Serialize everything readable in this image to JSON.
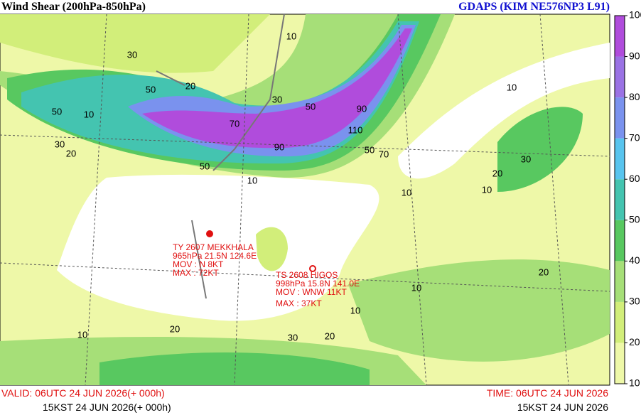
{
  "header": {
    "title": "Wind Shear (200hPa-850hPa)",
    "model": "GDAPS (KIM NE576NP3 L91)"
  },
  "colorbar": {
    "ticks": [
      10,
      20,
      30,
      40,
      50,
      60,
      70,
      80,
      90,
      100
    ],
    "colors": [
      "#eef8a8",
      "#d2ee7a",
      "#a6df78",
      "#58c860",
      "#44c4b0",
      "#58c4ee",
      "#7a92ee",
      "#9a72e4",
      "#b04cdc"
    ]
  },
  "contour_labels": [
    30,
    50,
    20,
    10,
    50,
    30,
    20,
    10,
    70,
    50,
    50,
    30,
    90,
    110,
    90,
    70,
    50,
    10,
    30,
    20,
    10,
    10,
    10,
    10,
    20,
    30,
    10,
    20,
    10,
    20
  ],
  "typhoons": [
    {
      "lines": [
        "TY 2607 MEKKHALA",
        "965hPa 21.5N 124.6E",
        "MOV : N 8KT",
        "MAX : 72KT"
      ]
    },
    {
      "lines": [
        "TS 2608 HIGOS",
        "998hPa 15.8N 141.0E",
        "MOV : WNW 11KT",
        "MAX : 37KT"
      ]
    }
  ],
  "footer": {
    "valid_utc": "VALID: 06UTC 24 JUN 2026(+ 000h)",
    "valid_kst": "15KST 24 JUN 2026(+ 000h)",
    "time_utc": "TIME: 06UTC 24 JUN 2026",
    "time_kst": "15KST 24 JUN 2026"
  }
}
